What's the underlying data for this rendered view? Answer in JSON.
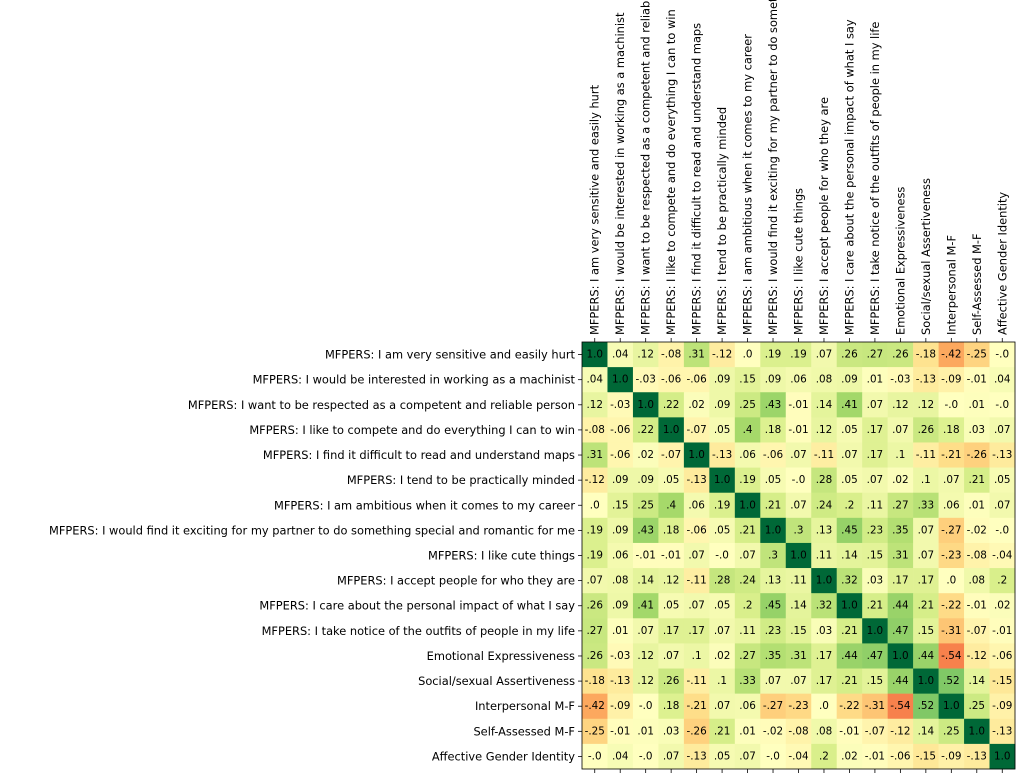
{
  "chart_data": {
    "type": "heatmap",
    "title": "",
    "colormap": "RdYlGn",
    "value_range": [
      -1,
      1
    ],
    "grid": false,
    "legend": "none",
    "labels": [
      "MFPERS: I am very sensitive and easily hurt",
      "MFPERS: I would be interested in working as a machinist",
      "MFPERS: I want to be respected as a competent and reliable person",
      "MFPERS: I like to compete and do everything I can to win",
      "MFPERS: I find it difficult to read and understand maps",
      "MFPERS: I tend to be practically minded",
      "MFPERS: I am ambitious when it comes to my career",
      "MFPERS: I would find it exciting for my partner to do something special and romantic for me",
      "MFPERS: I like cute things",
      "MFPERS: I accept people for who they are",
      "MFPERS: I care about the personal impact of what I say",
      "MFPERS: I take notice of the outfits of people in my life",
      "Emotional Expressiveness",
      "Social/sexual Assertiveness",
      "Interpersonal M-F",
      "Self-Assessed M-F",
      "Affective Gender Identity"
    ],
    "values": [
      [
        1.0,
        0.04,
        0.12,
        -0.08,
        0.31,
        -0.12,
        0.0,
        0.19,
        0.19,
        0.07,
        0.26,
        0.27,
        0.26,
        -0.18,
        -0.42,
        -0.25,
        -0.0
      ],
      [
        0.04,
        1.0,
        -0.03,
        -0.06,
        -0.06,
        0.09,
        0.15,
        0.09,
        0.06,
        0.08,
        0.09,
        0.01,
        -0.03,
        -0.13,
        -0.09,
        -0.01,
        0.04
      ],
      [
        0.12,
        -0.03,
        1.0,
        0.22,
        0.02,
        0.09,
        0.25,
        0.43,
        -0.01,
        0.14,
        0.41,
        0.07,
        0.12,
        0.12,
        -0.0,
        0.01,
        -0.0
      ],
      [
        -0.08,
        -0.06,
        0.22,
        1.0,
        -0.07,
        0.05,
        0.4,
        0.18,
        -0.01,
        0.12,
        0.05,
        0.17,
        0.07,
        0.26,
        0.18,
        0.03,
        0.07
      ],
      [
        0.31,
        -0.06,
        0.02,
        -0.07,
        1.0,
        -0.13,
        0.06,
        -0.06,
        0.07,
        -0.11,
        0.07,
        0.17,
        0.1,
        -0.11,
        -0.21,
        -0.26,
        -0.13
      ],
      [
        -0.12,
        0.09,
        0.09,
        0.05,
        -0.13,
        1.0,
        0.19,
        0.05,
        -0.0,
        0.28,
        0.05,
        0.07,
        0.02,
        0.1,
        0.07,
        0.21,
        0.05
      ],
      [
        0.0,
        0.15,
        0.25,
        0.4,
        0.06,
        0.19,
        1.0,
        0.21,
        0.07,
        0.24,
        0.2,
        0.11,
        0.27,
        0.33,
        0.06,
        0.01,
        0.07
      ],
      [
        0.19,
        0.09,
        0.43,
        0.18,
        -0.06,
        0.05,
        0.21,
        1.0,
        0.3,
        0.13,
        0.45,
        0.23,
        0.35,
        0.07,
        -0.27,
        -0.02,
        -0.0
      ],
      [
        0.19,
        0.06,
        -0.01,
        -0.01,
        0.07,
        -0.0,
        0.07,
        0.3,
        1.0,
        0.11,
        0.14,
        0.15,
        0.31,
        0.07,
        -0.23,
        -0.08,
        -0.04
      ],
      [
        0.07,
        0.08,
        0.14,
        0.12,
        -0.11,
        0.28,
        0.24,
        0.13,
        0.11,
        1.0,
        0.32,
        0.03,
        0.17,
        0.17,
        0.0,
        0.08,
        0.2
      ],
      [
        0.26,
        0.09,
        0.41,
        0.05,
        0.07,
        0.05,
        0.2,
        0.45,
        0.14,
        0.32,
        1.0,
        0.21,
        0.44,
        0.21,
        -0.22,
        -0.01,
        0.02
      ],
      [
        0.27,
        0.01,
        0.07,
        0.17,
        0.17,
        0.07,
        0.11,
        0.23,
        0.15,
        0.03,
        0.21,
        1.0,
        0.47,
        0.15,
        -0.31,
        -0.07,
        -0.01
      ],
      [
        0.26,
        -0.03,
        0.12,
        0.07,
        0.1,
        0.02,
        0.27,
        0.35,
        0.31,
        0.17,
        0.44,
        0.47,
        1.0,
        0.44,
        -0.54,
        -0.12,
        -0.06
      ],
      [
        -0.18,
        -0.13,
        0.12,
        0.26,
        -0.11,
        0.1,
        0.33,
        0.07,
        0.07,
        0.17,
        0.21,
        0.15,
        0.44,
        1.0,
        0.52,
        0.14,
        -0.15
      ],
      [
        -0.42,
        -0.09,
        -0.0,
        0.18,
        -0.21,
        0.07,
        0.06,
        -0.27,
        -0.23,
        0.0,
        -0.22,
        -0.31,
        -0.54,
        0.52,
        1.0,
        0.25,
        -0.09
      ],
      [
        -0.25,
        -0.01,
        0.01,
        0.03,
        -0.26,
        0.21,
        0.01,
        -0.02,
        -0.08,
        0.08,
        -0.01,
        -0.07,
        -0.12,
        0.14,
        0.25,
        1.0,
        -0.13
      ],
      [
        -0.0,
        0.04,
        -0.0,
        0.07,
        -0.13,
        0.05,
        0.07,
        -0.0,
        -0.04,
        0.2,
        0.02,
        -0.01,
        -0.06,
        -0.15,
        -0.09,
        -0.13,
        1.0
      ]
    ]
  }
}
